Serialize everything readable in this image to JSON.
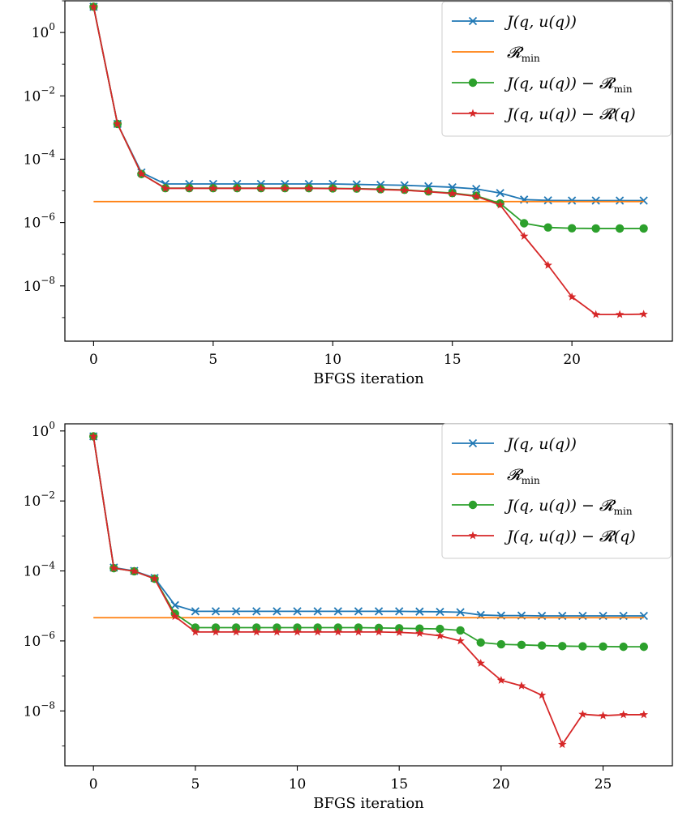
{
  "chart_data": [
    {
      "type": "line",
      "title": "",
      "xlabel": "BFGS iteration",
      "ylabel": "",
      "yscale": "log",
      "xlim": [
        -1.2,
        24.2
      ],
      "ylim": [
        1.8e-10,
        10.0
      ],
      "xticks": [
        0,
        5,
        10,
        15,
        20
      ],
      "xtick_labels": [
        "0",
        "5",
        "10",
        "15",
        "20"
      ],
      "yticks": [
        1.0,
        0.01,
        0.0001,
        1e-06,
        1e-08
      ],
      "ytick_labels": [
        {
          "base": "10",
          "exp": "0"
        },
        {
          "base": "10",
          "exp": "−2"
        },
        {
          "base": "10",
          "exp": "−4"
        },
        {
          "base": "10",
          "exp": "−6"
        },
        {
          "base": "10",
          "exp": "−8"
        }
      ],
      "grid": false,
      "legend_position": "top-right",
      "x": [
        0,
        1,
        2,
        3,
        4,
        5,
        6,
        7,
        8,
        9,
        10,
        11,
        12,
        13,
        14,
        15,
        16,
        17,
        18,
        19,
        20,
        21,
        22,
        23
      ],
      "series": [
        {
          "name": "J(q, u(q))",
          "name_main": "J(q, u(q))",
          "name_sub": "",
          "color": "#1f77b4",
          "marker": "x",
          "values": [
            6.5,
            0.0013,
            3.8e-05,
            1.65e-05,
            1.65e-05,
            1.65e-05,
            1.65e-05,
            1.65e-05,
            1.65e-05,
            1.65e-05,
            1.65e-05,
            1.6e-05,
            1.55e-05,
            1.5e-05,
            1.4e-05,
            1.3e-05,
            1.15e-05,
            8.5e-06,
            5.3e-06,
            5e-06,
            4.95e-06,
            4.95e-06,
            4.95e-06,
            4.95e-06
          ]
        },
        {
          "name": "𝓡min",
          "name_main": "𝓡",
          "name_sub": "min",
          "color": "#ff7f0e",
          "marker": "none",
          "values": [
            4.6e-06,
            4.6e-06,
            4.6e-06,
            4.6e-06,
            4.6e-06,
            4.6e-06,
            4.6e-06,
            4.6e-06,
            4.6e-06,
            4.6e-06,
            4.6e-06,
            4.6e-06,
            4.6e-06,
            4.6e-06,
            4.6e-06,
            4.6e-06,
            4.6e-06,
            4.6e-06,
            4.6e-06,
            4.6e-06,
            4.6e-06,
            4.6e-06,
            4.6e-06,
            4.6e-06
          ]
        },
        {
          "name": "J(q, u(q)) − 𝓡min",
          "name_main": "J(q, u(q)) − 𝓡",
          "name_sub": "min",
          "color": "#2ca02c",
          "marker": "circle",
          "values": [
            6.5,
            0.0013,
            3.4e-05,
            1.22e-05,
            1.22e-05,
            1.22e-05,
            1.22e-05,
            1.22e-05,
            1.22e-05,
            1.22e-05,
            1.2e-05,
            1.18e-05,
            1.13e-05,
            1.08e-05,
            9.6e-06,
            8.5e-06,
            7e-06,
            4e-06,
            9.5e-07,
            7e-07,
            6.6e-07,
            6.5e-07,
            6.5e-07,
            6.5e-07
          ]
        },
        {
          "name": "J(q, u(q)) − 𝓡(q)",
          "name_main": "J(q, u(q)) − 𝓡(q)",
          "name_sub": "",
          "color": "#d62728",
          "marker": "star",
          "values": [
            6.5,
            0.0013,
            3.4e-05,
            1.2e-05,
            1.2e-05,
            1.2e-05,
            1.2e-05,
            1.2e-05,
            1.2e-05,
            1.2e-05,
            1.18e-05,
            1.16e-05,
            1.1e-05,
            1.05e-05,
            9.4e-06,
            8.2e-06,
            6.7e-06,
            3.6e-06,
            3.7e-07,
            4.5e-08,
            4.5e-09,
            1.25e-09,
            1.25e-09,
            1.28e-09
          ]
        }
      ]
    },
    {
      "type": "line",
      "title": "",
      "xlabel": "BFGS iteration",
      "ylabel": "",
      "yscale": "log",
      "xlim": [
        -1.4,
        28.4
      ],
      "ylim": [
        2.7e-10,
        1.6
      ],
      "xticks": [
        0,
        5,
        10,
        15,
        20,
        25
      ],
      "xtick_labels": [
        "0",
        "5",
        "10",
        "15",
        "20",
        "25"
      ],
      "yticks": [
        1.0,
        0.01,
        0.0001,
        1e-06,
        1e-08
      ],
      "ytick_labels": [
        {
          "base": "10",
          "exp": "0"
        },
        {
          "base": "10",
          "exp": "−2"
        },
        {
          "base": "10",
          "exp": "−4"
        },
        {
          "base": "10",
          "exp": "−6"
        },
        {
          "base": "10",
          "exp": "−8"
        }
      ],
      "grid": false,
      "legend_position": "top-right",
      "x": [
        0,
        1,
        2,
        3,
        4,
        5,
        6,
        7,
        8,
        9,
        10,
        11,
        12,
        13,
        14,
        15,
        16,
        17,
        18,
        19,
        20,
        21,
        22,
        23,
        24,
        25,
        26,
        27
      ],
      "series": [
        {
          "name": "J(q, u(q))",
          "name_main": "J(q, u(q))",
          "name_sub": "",
          "color": "#1f77b4",
          "marker": "x",
          "values": [
            0.7,
            0.000125,
            0.0001,
            6.3e-05,
            1.05e-05,
            7e-06,
            7e-06,
            7e-06,
            7e-06,
            7e-06,
            7e-06,
            7e-06,
            7e-06,
            7e-06,
            7e-06,
            7e-06,
            6.9e-06,
            6.8e-06,
            6.6e-06,
            5.5e-06,
            5.3e-06,
            5.3e-06,
            5.2e-06,
            5.2e-06,
            5.2e-06,
            5.2e-06,
            5.2e-06,
            5.2e-06
          ]
        },
        {
          "name": "𝓡min",
          "name_main": "𝓡",
          "name_sub": "min",
          "color": "#ff7f0e",
          "marker": "none",
          "values": [
            4.6e-06,
            4.6e-06,
            4.6e-06,
            4.6e-06,
            4.6e-06,
            4.6e-06,
            4.6e-06,
            4.6e-06,
            4.6e-06,
            4.6e-06,
            4.6e-06,
            4.6e-06,
            4.6e-06,
            4.6e-06,
            4.6e-06,
            4.6e-06,
            4.6e-06,
            4.6e-06,
            4.6e-06,
            4.6e-06,
            4.6e-06,
            4.6e-06,
            4.6e-06,
            4.6e-06,
            4.6e-06,
            4.6e-06,
            4.6e-06,
            4.6e-06
          ]
        },
        {
          "name": "J(q, u(q)) − 𝓡min",
          "name_main": "J(q, u(q)) − 𝓡",
          "name_sub": "min",
          "color": "#2ca02c",
          "marker": "circle",
          "values": [
            0.7,
            0.00012,
            9.8e-05,
            6e-05,
            6e-06,
            2.4e-06,
            2.4e-06,
            2.4e-06,
            2.4e-06,
            2.4e-06,
            2.4e-06,
            2.4e-06,
            2.4e-06,
            2.4e-06,
            2.35e-06,
            2.3e-06,
            2.25e-06,
            2.2e-06,
            2e-06,
            9e-07,
            8e-07,
            7.7e-07,
            7.4e-07,
            7.1e-07,
            7e-07,
            6.9e-07,
            6.8e-07,
            6.8e-07
          ]
        },
        {
          "name": "J(q, u(q)) − 𝓡(q)",
          "name_main": "J(q, u(q)) − 𝓡(q)",
          "name_sub": "",
          "color": "#d62728",
          "marker": "star",
          "values": [
            0.7,
            0.00012,
            9.8e-05,
            6e-05,
            5e-06,
            1.8e-06,
            1.8e-06,
            1.8e-06,
            1.8e-06,
            1.8e-06,
            1.8e-06,
            1.8e-06,
            1.8e-06,
            1.8e-06,
            1.8e-06,
            1.75e-06,
            1.65e-06,
            1.4e-06,
            1e-06,
            2.3e-07,
            7.5e-08,
            5.2e-08,
            2.8e-08,
            1.1e-09,
            8e-09,
            7.3e-09,
            7.8e-09,
            7.8e-09
          ]
        }
      ]
    }
  ]
}
